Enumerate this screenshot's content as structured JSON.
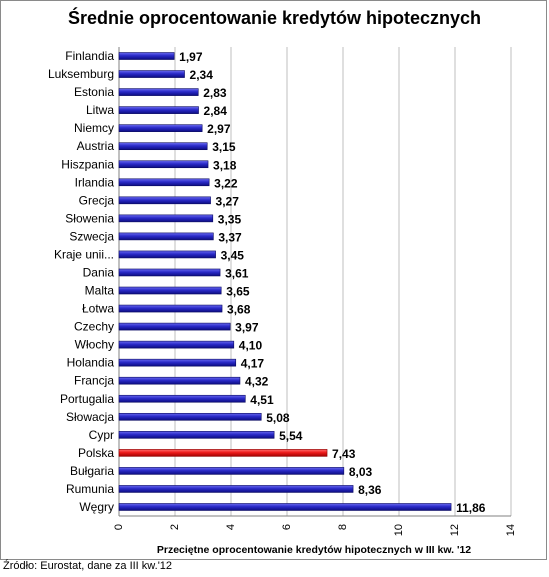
{
  "chart_data": {
    "type": "bar",
    "orientation": "horizontal",
    "title": "Średnie oprocentowanie kredytów hipotecznych",
    "xlabel": "Przeciętne oprocentowanie kredytów hipotecznych w III kw. '12",
    "ylabel": "",
    "xlim": [
      0,
      14
    ],
    "xticks": [
      0,
      2,
      4,
      6,
      8,
      10,
      12,
      14
    ],
    "grid": true,
    "legend": "none",
    "categories": [
      "Finlandia",
      "Luksemburg",
      "Estonia",
      "Litwa",
      "Niemcy",
      "Austria",
      "Hiszpania",
      "Irlandia",
      "Grecja",
      "Słowenia",
      "Szwecja",
      "Kraje unii...",
      "Dania",
      "Malta",
      "Łotwa",
      "Czechy",
      "Włochy",
      "Holandia",
      "Francja",
      "Portugalia",
      "Słowacja",
      "Cypr",
      "Polska",
      "Bułgaria",
      "Rumunia",
      "Węgry"
    ],
    "values": [
      1.97,
      2.34,
      2.83,
      2.84,
      2.97,
      3.15,
      3.18,
      3.22,
      3.27,
      3.35,
      3.37,
      3.45,
      3.61,
      3.65,
      3.68,
      3.97,
      4.1,
      4.17,
      4.32,
      4.51,
      5.08,
      5.54,
      7.43,
      8.03,
      8.36,
      11.86
    ],
    "value_labels": [
      "1,97",
      "2,34",
      "2,83",
      "2,84",
      "2,97",
      "3,15",
      "3,18",
      "3,22",
      "3,27",
      "3,35",
      "3,37",
      "3,45",
      "3,61",
      "3,65",
      "3,68",
      "3,97",
      "4,10",
      "4,17",
      "4,32",
      "4,51",
      "5,08",
      "5,54",
      "7,43",
      "8,03",
      "8,36",
      "11,86"
    ],
    "highlight_category": "Polska",
    "colors": {
      "bar": "#1c1ca8",
      "highlight": "#e01010",
      "grid": "#bfbfbf"
    }
  },
  "source_note": "Źródło: Eurostat, dane za III kw.'12"
}
